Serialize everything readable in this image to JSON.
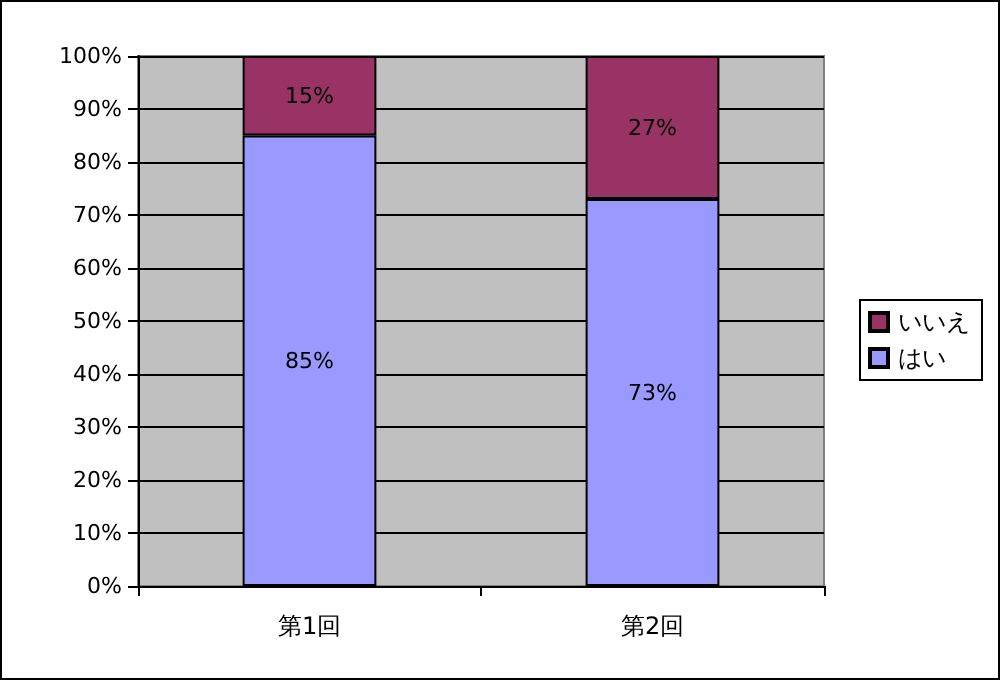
{
  "chart_data": {
    "type": "bar",
    "stacked": true,
    "categories": [
      "第1回",
      "第2回"
    ],
    "series": [
      {
        "name": "はい",
        "color": "#9999ff",
        "values": [
          85,
          73
        ],
        "value_labels": [
          "85%",
          "73%"
        ]
      },
      {
        "name": "いいえ",
        "color": "#993366",
        "values": [
          15,
          27
        ],
        "value_labels": [
          "15%",
          "27%"
        ]
      }
    ],
    "ylim": [
      0,
      100
    ],
    "yticks": [
      {
        "value": 0,
        "label": "0%"
      },
      {
        "value": 10,
        "label": "10%"
      },
      {
        "value": 20,
        "label": "20%"
      },
      {
        "value": 30,
        "label": "30%"
      },
      {
        "value": 40,
        "label": "40%"
      },
      {
        "value": 50,
        "label": "50%"
      },
      {
        "value": 60,
        "label": "60%"
      },
      {
        "value": 70,
        "label": "70%"
      },
      {
        "value": 80,
        "label": "80%"
      },
      {
        "value": 90,
        "label": "90%"
      },
      {
        "value": 100,
        "label": "100%"
      }
    ],
    "grid": "y",
    "legend": "right"
  }
}
